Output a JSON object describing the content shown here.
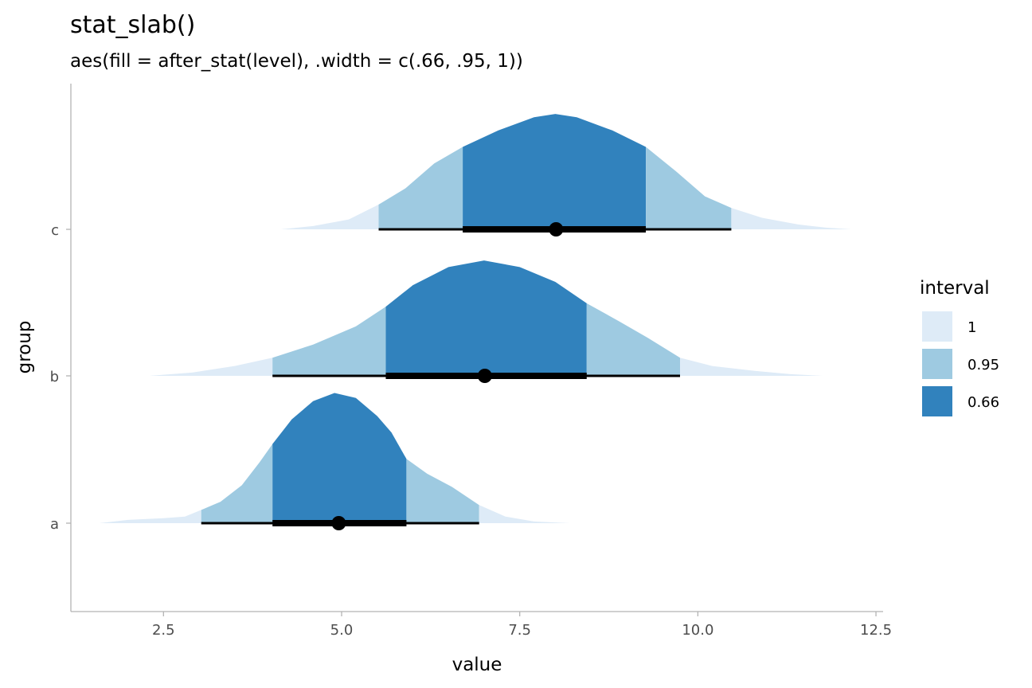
{
  "chart_data": {
    "type": "area",
    "title": "stat_slab()",
    "subtitle": "aes(fill = after_stat(level), .width = c(.66, .95, 1))",
    "xlabel": "value",
    "ylabel": "group",
    "xlim": [
      1.2,
      12.6
    ],
    "x_ticks": [
      "2.5",
      "5.0",
      "7.5",
      "10.0",
      "12.5"
    ],
    "x_tick_values": [
      2.5,
      5.0,
      7.5,
      10.0,
      12.5
    ],
    "categories": [
      "a",
      "b",
      "c"
    ],
    "grid": false,
    "legend": {
      "title": "interval",
      "placement": "right",
      "entries": [
        {
          "label": "1",
          "color": "#deebf7"
        },
        {
          "label": "0.95",
          "color": "#9ecae1"
        },
        {
          "label": "0.66",
          "color": "#3182bd"
        }
      ]
    },
    "series": [
      {
        "category": "a",
        "point": 4.96,
        "interval_66": [
          4.03,
          5.91
        ],
        "interval_95": [
          3.03,
          6.93
        ],
        "interval_100": [
          1.6,
          8.2
        ],
        "density": [
          [
            1.6,
            0.0
          ],
          [
            2.0,
            0.02
          ],
          [
            2.5,
            0.03
          ],
          [
            2.8,
            0.04
          ],
          [
            3.03,
            0.08
          ],
          [
            3.3,
            0.13
          ],
          [
            3.6,
            0.23
          ],
          [
            3.85,
            0.37
          ],
          [
            4.03,
            0.48
          ],
          [
            4.3,
            0.63
          ],
          [
            4.6,
            0.74
          ],
          [
            4.9,
            0.79
          ],
          [
            5.2,
            0.76
          ],
          [
            5.5,
            0.65
          ],
          [
            5.7,
            0.55
          ],
          [
            5.91,
            0.39
          ],
          [
            6.2,
            0.3
          ],
          [
            6.55,
            0.22
          ],
          [
            6.93,
            0.11
          ],
          [
            7.3,
            0.04
          ],
          [
            7.7,
            0.01
          ],
          [
            8.2,
            0.0
          ]
        ]
      },
      {
        "category": "b",
        "point": 7.01,
        "interval_66": [
          5.62,
          8.44
        ],
        "interval_95": [
          4.03,
          9.75
        ],
        "interval_100": [
          2.3,
          11.75
        ],
        "density": [
          [
            2.3,
            0.0
          ],
          [
            2.9,
            0.02
          ],
          [
            3.5,
            0.06
          ],
          [
            4.03,
            0.11
          ],
          [
            4.6,
            0.19
          ],
          [
            5.2,
            0.3
          ],
          [
            5.62,
            0.42
          ],
          [
            6.0,
            0.55
          ],
          [
            6.5,
            0.66
          ],
          [
            7.0,
            0.7
          ],
          [
            7.5,
            0.66
          ],
          [
            8.0,
            0.57
          ],
          [
            8.44,
            0.44
          ],
          [
            8.9,
            0.33
          ],
          [
            9.3,
            0.23
          ],
          [
            9.75,
            0.11
          ],
          [
            10.2,
            0.06
          ],
          [
            10.8,
            0.03
          ],
          [
            11.3,
            0.01
          ],
          [
            11.75,
            0.0
          ]
        ]
      },
      {
        "category": "c",
        "point": 8.01,
        "interval_66": [
          6.7,
          9.27
        ],
        "interval_95": [
          5.52,
          10.47
        ],
        "interval_100": [
          4.15,
          12.15
        ],
        "density": [
          [
            4.15,
            0.0
          ],
          [
            4.6,
            0.02
          ],
          [
            5.1,
            0.06
          ],
          [
            5.52,
            0.15
          ],
          [
            5.9,
            0.25
          ],
          [
            6.3,
            0.4
          ],
          [
            6.7,
            0.5
          ],
          [
            7.2,
            0.6
          ],
          [
            7.7,
            0.68
          ],
          [
            8.0,
            0.7
          ],
          [
            8.3,
            0.68
          ],
          [
            8.8,
            0.6
          ],
          [
            9.27,
            0.5
          ],
          [
            9.7,
            0.35
          ],
          [
            10.1,
            0.2
          ],
          [
            10.47,
            0.13
          ],
          [
            10.9,
            0.07
          ],
          [
            11.4,
            0.03
          ],
          [
            11.8,
            0.01
          ],
          [
            12.15,
            0.0
          ]
        ]
      }
    ]
  }
}
